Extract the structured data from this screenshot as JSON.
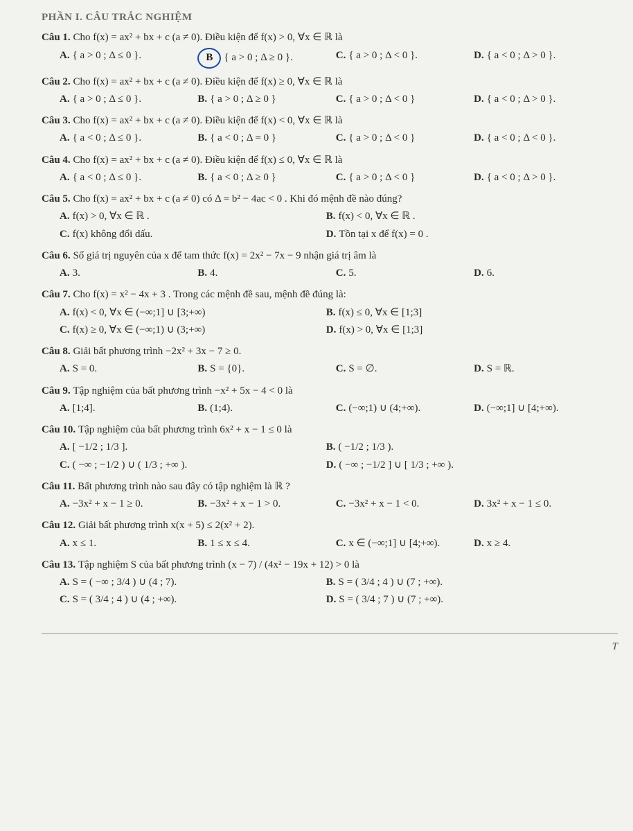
{
  "header": "PHẦN I. CÂU TRẮC NGHIỆM",
  "pageMark": "T",
  "questions": [
    {
      "label": "Câu 1.",
      "stem": "Cho  f(x) = ax² + bx + c  (a ≠ 0). Điều kiện để  f(x) > 0, ∀x ∈ ℝ  là",
      "cols": 4,
      "opts": [
        {
          "lab": "A.",
          "t": "{ a > 0 ; Δ ≤ 0 }."
        },
        {
          "lab": "B.",
          "t": "{ a > 0 ; Δ ≥ 0 }.",
          "circled": true
        },
        {
          "lab": "C.",
          "t": "{ a > 0 ; Δ < 0 }."
        },
        {
          "lab": "D.",
          "t": "{ a < 0 ; Δ > 0 }."
        }
      ]
    },
    {
      "label": "Câu 2.",
      "stem": "Cho  f(x) = ax² + bx + c (a ≠ 0). Điều kiện để  f(x) ≥ 0, ∀x ∈ ℝ  là",
      "cols": 4,
      "opts": [
        {
          "lab": "A.",
          "t": "{ a > 0 ; Δ ≤ 0 }."
        },
        {
          "lab": "B.",
          "t": "{ a > 0 ; Δ ≥ 0 }"
        },
        {
          "lab": "C.",
          "t": "{ a > 0 ; Δ < 0 }"
        },
        {
          "lab": "D.",
          "t": "{ a < 0 ; Δ > 0 }."
        }
      ]
    },
    {
      "label": "Câu 3.",
      "stem": "Cho  f(x) = ax² + bx + c (a ≠ 0). Điều kiện để  f(x) < 0, ∀x ∈ ℝ  là",
      "cols": 4,
      "opts": [
        {
          "lab": "A.",
          "t": "{ a < 0 ; Δ ≤ 0 }."
        },
        {
          "lab": "B.",
          "t": "{ a < 0 ; Δ = 0 }"
        },
        {
          "lab": "C.",
          "t": "{ a > 0 ; Δ < 0 }"
        },
        {
          "lab": "D.",
          "t": "{ a < 0 ; Δ < 0 }."
        }
      ]
    },
    {
      "label": "Câu 4.",
      "stem": "Cho  f(x) = ax² + bx + c (a ≠ 0). Điều kiện để  f(x) ≤ 0, ∀x ∈ ℝ  là",
      "cols": 4,
      "opts": [
        {
          "lab": "A.",
          "t": "{ a < 0 ; Δ ≤ 0 }."
        },
        {
          "lab": "B.",
          "t": "{ a < 0 ; Δ ≥ 0 }"
        },
        {
          "lab": "C.",
          "t": "{ a > 0 ; Δ < 0 }"
        },
        {
          "lab": "D.",
          "t": "{ a < 0 ; Δ > 0 }."
        }
      ]
    },
    {
      "label": "Câu 5.",
      "stem": "Cho  f(x) = ax² + bx + c (a ≠ 0)  có  Δ = b² − 4ac < 0 . Khi đó mệnh đề nào đúng?",
      "cols": 2,
      "opts": [
        {
          "lab": "A.",
          "t": "f(x) > 0,  ∀x ∈ ℝ ."
        },
        {
          "lab": "B.",
          "t": "f(x) < 0,  ∀x ∈ ℝ ."
        },
        {
          "lab": "C.",
          "t": "f(x) không đổi dấu."
        },
        {
          "lab": "D.",
          "t": "Tồn tại x để f(x) = 0 ."
        }
      ]
    },
    {
      "label": "Câu 6.",
      "stem": "Số giá trị nguyên của x để tam thức  f(x) = 2x² − 7x − 9  nhận giá trị âm là",
      "cols": 4,
      "opts": [
        {
          "lab": "A.",
          "t": "3."
        },
        {
          "lab": "B.",
          "t": "4."
        },
        {
          "lab": "C.",
          "t": "5."
        },
        {
          "lab": "D.",
          "t": "6."
        }
      ]
    },
    {
      "label": "Câu 7.",
      "stem": "Cho  f(x) = x² − 4x + 3 . Trong các mệnh đề sau, mệnh đề đúng là:",
      "cols": 2,
      "opts": [
        {
          "lab": "A.",
          "t": "f(x) < 0, ∀x ∈ (−∞;1] ∪ [3;+∞)"
        },
        {
          "lab": "B.",
          "t": "f(x) ≤ 0, ∀x ∈ [1;3]"
        },
        {
          "lab": "C.",
          "t": "f(x) ≥ 0, ∀x ∈ (−∞;1) ∪ (3;+∞)"
        },
        {
          "lab": "D.",
          "t": "f(x) > 0, ∀x ∈ [1;3]"
        }
      ]
    },
    {
      "label": "Câu 8.",
      "stem": "Giải bất phương trình  −2x² + 3x − 7 ≥ 0.",
      "cols": 4,
      "opts": [
        {
          "lab": "A.",
          "t": "S = 0."
        },
        {
          "lab": "B.",
          "t": "S = {0}."
        },
        {
          "lab": "C.",
          "t": "S = ∅."
        },
        {
          "lab": "D.",
          "t": "S = ℝ."
        }
      ]
    },
    {
      "label": "Câu 9.",
      "stem": "Tập nghiệm của bất phương trình  −x² + 5x − 4 < 0  là",
      "cols": 4,
      "opts": [
        {
          "lab": "A.",
          "t": "[1;4]."
        },
        {
          "lab": "B.",
          "t": "(1;4)."
        },
        {
          "lab": "C.",
          "t": "(−∞;1) ∪ (4;+∞)."
        },
        {
          "lab": "D.",
          "t": "(−∞;1] ∪ [4;+∞)."
        }
      ]
    },
    {
      "label": "Câu 10.",
      "stem": "Tập nghiệm của bất phương trình  6x² + x − 1 ≤ 0  là",
      "cols": 2,
      "opts": [
        {
          "lab": "A.",
          "t": "[ −1/2 ; 1/3 ]."
        },
        {
          "lab": "B.",
          "t": "( −1/2 ; 1/3 )."
        },
        {
          "lab": "C.",
          "t": "( −∞ ; −1/2 ) ∪ ( 1/3 ; +∞ )."
        },
        {
          "lab": "D.",
          "t": "( −∞ ; −1/2 ] ∪ [ 1/3 ; +∞ )."
        }
      ]
    },
    {
      "label": "Câu 11.",
      "stem": "Bất phương trình nào sau đây có tập nghiệm là ℝ ?",
      "cols": 4,
      "opts": [
        {
          "lab": "A.",
          "t": "−3x² + x − 1 ≥ 0."
        },
        {
          "lab": "B.",
          "t": "−3x² + x − 1 > 0."
        },
        {
          "lab": "C.",
          "t": "−3x² + x − 1 < 0."
        },
        {
          "lab": "D.",
          "t": "3x² + x − 1 ≤ 0."
        }
      ]
    },
    {
      "label": "Câu 12.",
      "stem": "Giải bất phương trình  x(x + 5) ≤ 2(x² + 2).",
      "cols": 4,
      "opts": [
        {
          "lab": "A.",
          "t": "x ≤ 1."
        },
        {
          "lab": "B.",
          "t": "1 ≤ x ≤ 4."
        },
        {
          "lab": "C.",
          "t": "x ∈ (−∞;1] ∪ [4;+∞)."
        },
        {
          "lab": "D.",
          "t": "x ≥ 4."
        }
      ]
    },
    {
      "label": "Câu 13.",
      "stem": "Tập nghiệm S của bất phương trình   (x − 7) / (4x² − 19x + 12) > 0  là",
      "cols": 2,
      "opts": [
        {
          "lab": "A.",
          "t": "S = ( −∞ ; 3/4 ) ∪ (4 ; 7)."
        },
        {
          "lab": "B.",
          "t": "S = ( 3/4 ; 4 ) ∪ (7 ; +∞)."
        },
        {
          "lab": "C.",
          "t": "S = ( 3/4 ; 4 ) ∪ (4 ; +∞)."
        },
        {
          "lab": "D.",
          "t": "S = ( 3/4 ; 7 ) ∪ (7 ; +∞)."
        }
      ]
    }
  ]
}
